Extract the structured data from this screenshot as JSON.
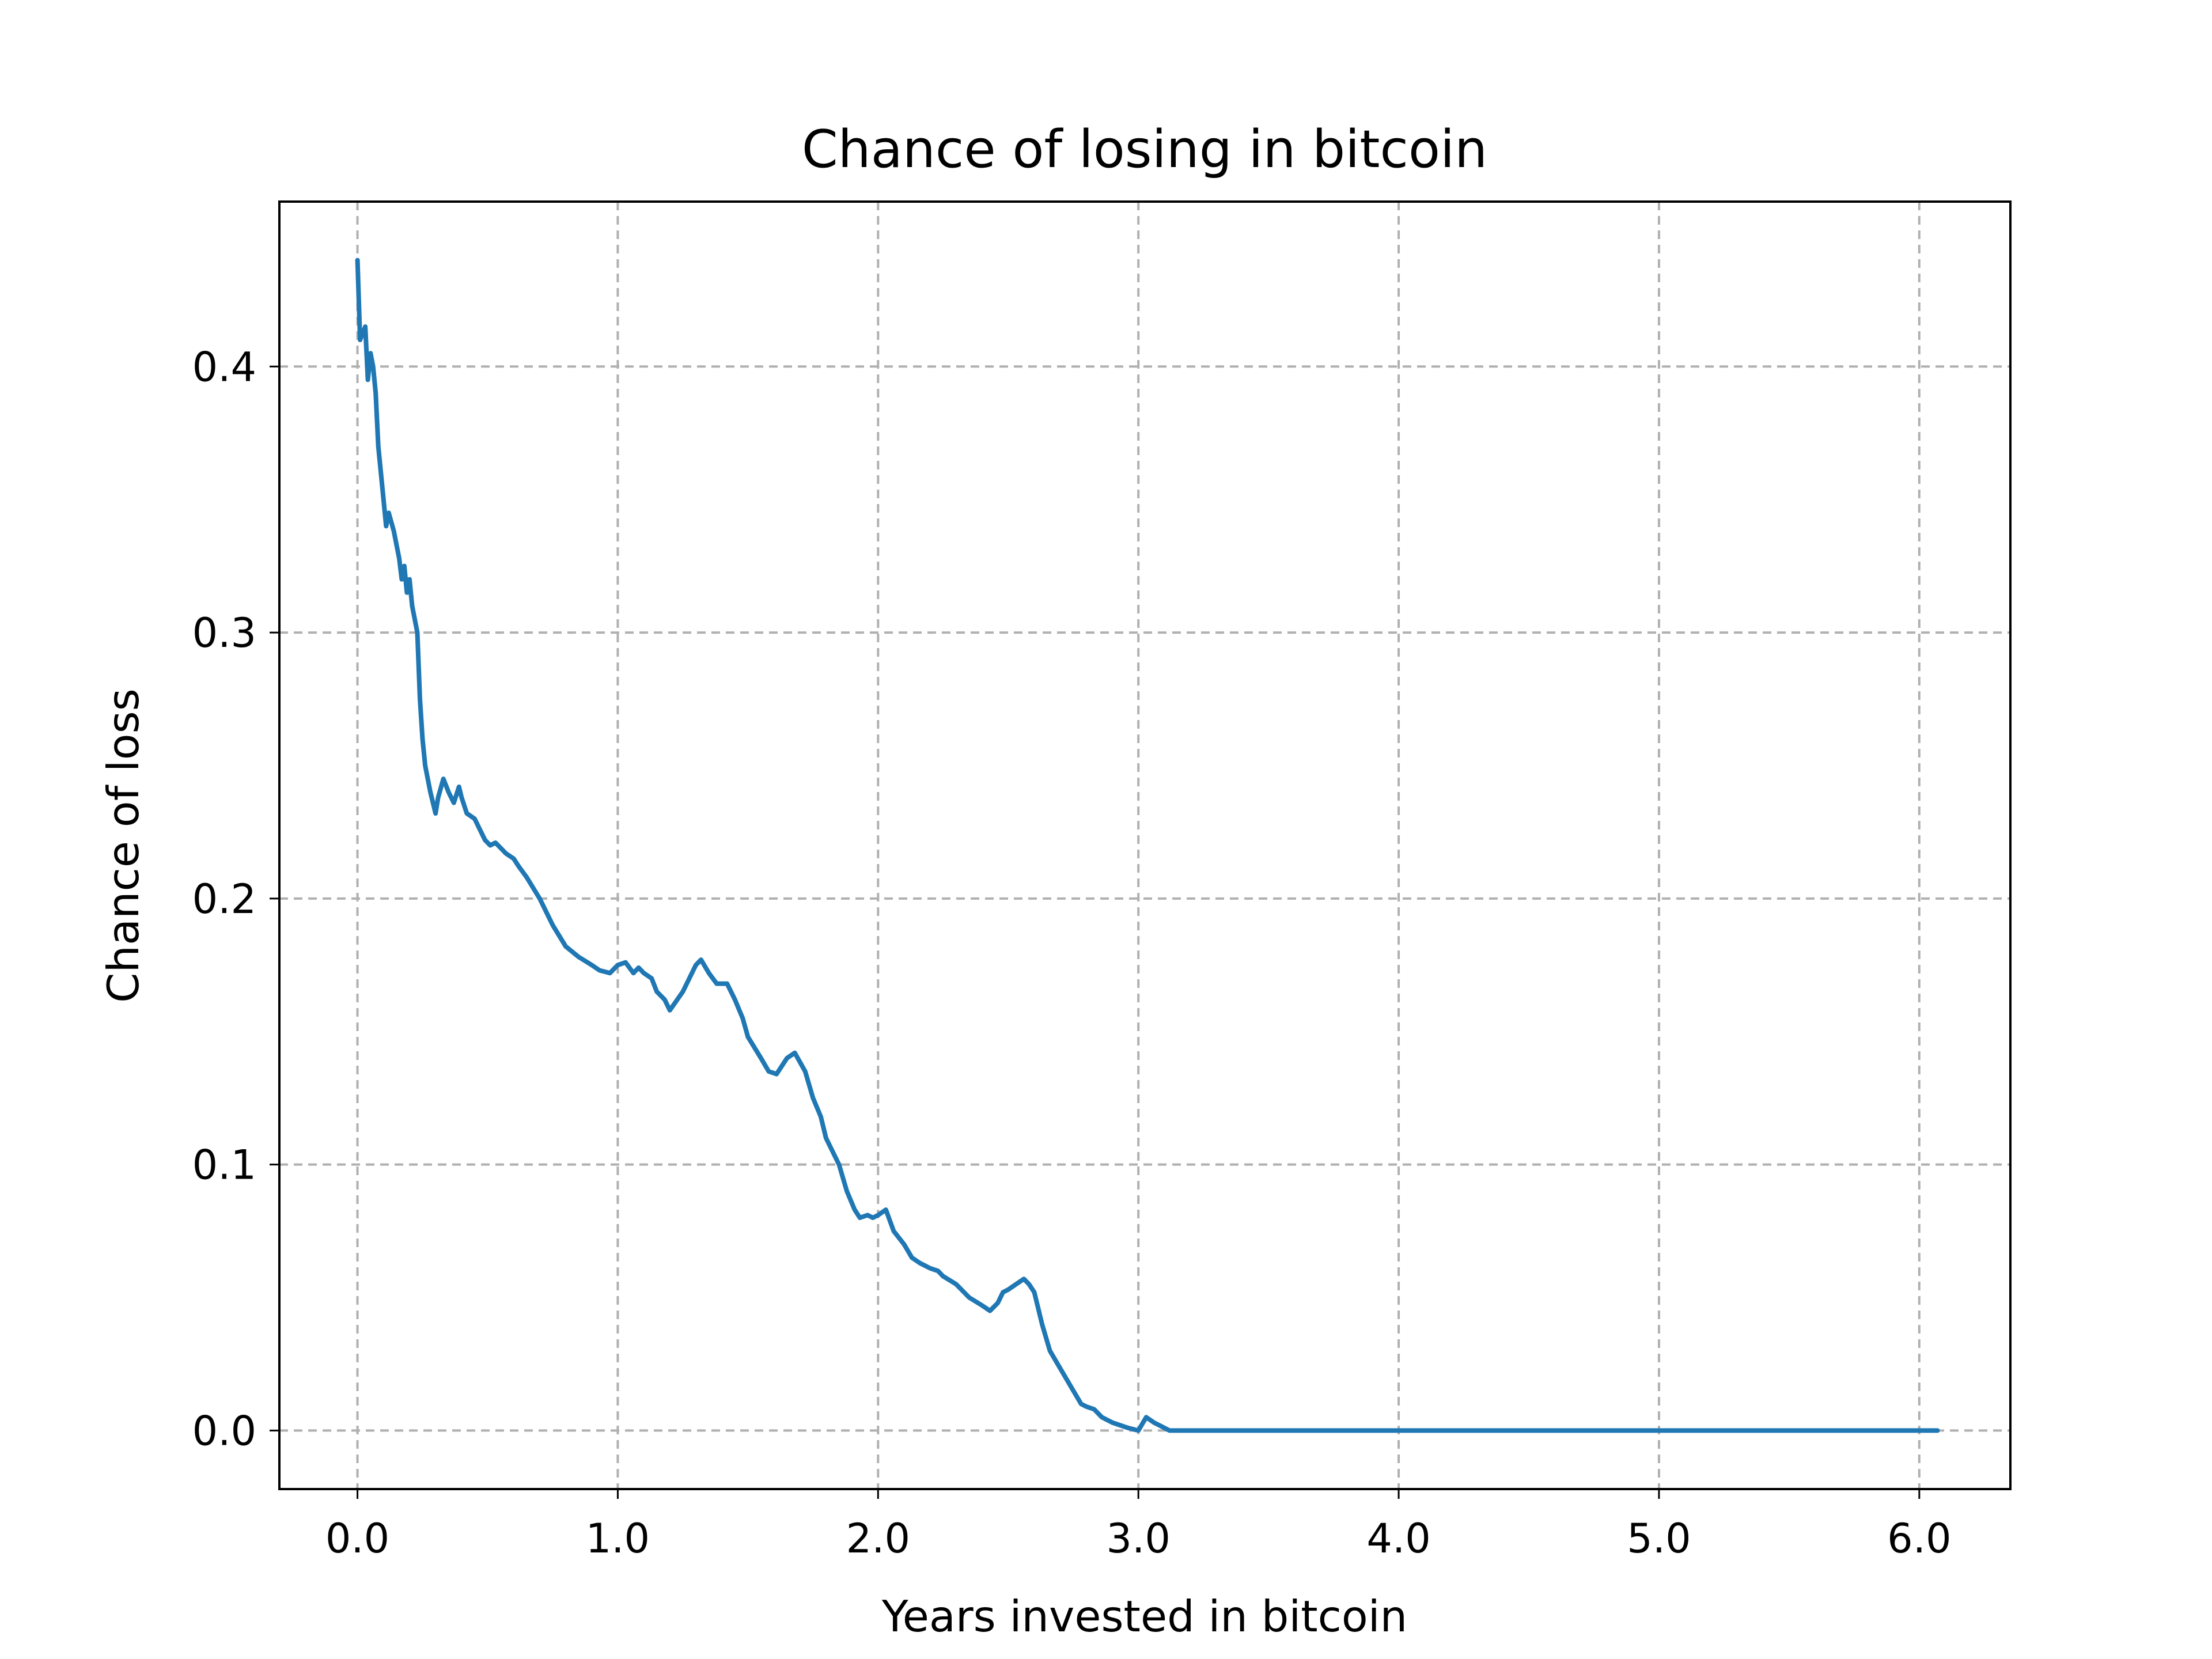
{
  "chart_data": {
    "type": "line",
    "title": "Chance of losing in bitcoin",
    "xlabel": "Years invested in bitcoin",
    "ylabel": "Chance of loss",
    "xlim": [
      -0.3,
      6.35
    ],
    "ylim": [
      -0.022,
      0.462
    ],
    "xticks": [
      0,
      1,
      2,
      3,
      4,
      5,
      6
    ],
    "xtick_labels": [
      "0.0",
      "1.0",
      "2.0",
      "3.0",
      "4.0",
      "5.0",
      "6.0"
    ],
    "yticks": [
      0.0,
      0.1,
      0.2,
      0.3,
      0.4
    ],
    "ytick_labels": [
      "0.0",
      "0.1",
      "0.2",
      "0.3",
      "0.4"
    ],
    "grid": true,
    "series": [
      {
        "color": "#1f77b4",
        "x": [
          0.0,
          0.01,
          0.03,
          0.04,
          0.05,
          0.06,
          0.07,
          0.08,
          0.1,
          0.11,
          0.12,
          0.14,
          0.15,
          0.16,
          0.17,
          0.18,
          0.19,
          0.2,
          0.21,
          0.22,
          0.23,
          0.24,
          0.25,
          0.26,
          0.27,
          0.28,
          0.3,
          0.31,
          0.33,
          0.35,
          0.37,
          0.39,
          0.4,
          0.42,
          0.45,
          0.47,
          0.49,
          0.51,
          0.53,
          0.55,
          0.57,
          0.6,
          0.62,
          0.65,
          0.7,
          0.75,
          0.8,
          0.85,
          0.9,
          0.93,
          0.97,
          1.0,
          1.03,
          1.06,
          1.08,
          1.1,
          1.13,
          1.15,
          1.18,
          1.2,
          1.25,
          1.3,
          1.32,
          1.35,
          1.38,
          1.42,
          1.45,
          1.48,
          1.5,
          1.55,
          1.58,
          1.61,
          1.65,
          1.68,
          1.72,
          1.75,
          1.78,
          1.8,
          1.85,
          1.88,
          1.91,
          1.93,
          1.96,
          1.98,
          2.0,
          2.03,
          2.06,
          2.1,
          2.13,
          2.16,
          2.2,
          2.23,
          2.25,
          2.3,
          2.35,
          2.4,
          2.43,
          2.46,
          2.48,
          2.5,
          2.53,
          2.56,
          2.58,
          2.6,
          2.63,
          2.66,
          2.69,
          2.72,
          2.75,
          2.78,
          2.8,
          2.83,
          2.86,
          2.9,
          2.93,
          2.96,
          3.0,
          3.03,
          3.06,
          3.08,
          3.1,
          3.12,
          3.14,
          3.16,
          3.18,
          3.2,
          3.3,
          3.5,
          4.0,
          4.5,
          5.0,
          5.5,
          6.07
        ],
        "y": [
          0.44,
          0.41,
          0.415,
          0.395,
          0.405,
          0.4,
          0.39,
          0.37,
          0.35,
          0.34,
          0.345,
          0.338,
          0.333,
          0.328,
          0.32,
          0.325,
          0.315,
          0.32,
          0.31,
          0.305,
          0.3,
          0.275,
          0.26,
          0.25,
          0.245,
          0.24,
          0.232,
          0.238,
          0.245,
          0.24,
          0.236,
          0.242,
          0.238,
          0.232,
          0.23,
          0.226,
          0.222,
          0.22,
          0.221,
          0.219,
          0.217,
          0.215,
          0.212,
          0.208,
          0.2,
          0.19,
          0.182,
          0.178,
          0.175,
          0.173,
          0.172,
          0.175,
          0.176,
          0.172,
          0.174,
          0.172,
          0.17,
          0.165,
          0.162,
          0.158,
          0.165,
          0.175,
          0.177,
          0.172,
          0.168,
          0.168,
          0.162,
          0.155,
          0.148,
          0.14,
          0.135,
          0.134,
          0.14,
          0.142,
          0.135,
          0.125,
          0.118,
          0.11,
          0.1,
          0.09,
          0.083,
          0.08,
          0.081,
          0.08,
          0.081,
          0.083,
          0.075,
          0.07,
          0.065,
          0.063,
          0.061,
          0.06,
          0.058,
          0.055,
          0.05,
          0.047,
          0.045,
          0.048,
          0.052,
          0.053,
          0.055,
          0.057,
          0.055,
          0.052,
          0.04,
          0.03,
          0.025,
          0.02,
          0.015,
          0.01,
          0.009,
          0.008,
          0.005,
          0.003,
          0.002,
          0.001,
          0.0,
          0.005,
          0.003,
          0.002,
          0.001,
          0.0,
          0.0,
          0.0,
          0.0,
          0.0,
          0.0,
          0.0,
          0.0,
          0.0,
          0.0,
          0.0,
          0.0
        ]
      }
    ]
  }
}
